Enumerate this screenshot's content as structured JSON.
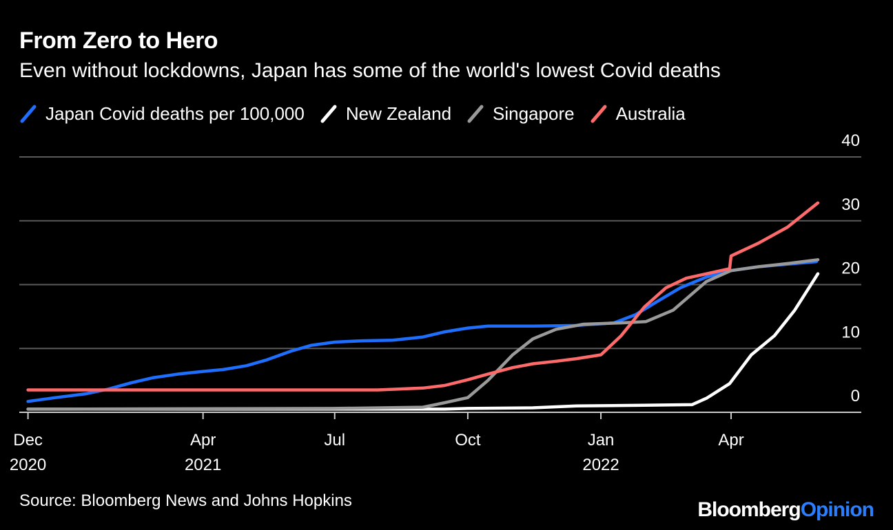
{
  "header": {
    "title": "From Zero to Hero",
    "subtitle": "Even without lockdowns, Japan has some of the world's lowest Covid deaths"
  },
  "footer": {
    "source": "Source: Bloomberg News and Johns Hopkins",
    "brand_part1": "Bloomberg",
    "brand_part2": "Opinion"
  },
  "colors": {
    "background": "#000000",
    "grid": "#5a5a5a",
    "axis": "#cccccc",
    "text": "#ffffff",
    "brand_accent": "#2a7fff"
  },
  "chart_data": {
    "type": "line",
    "title": "From Zero to Hero",
    "subtitle": "Even without lockdowns, Japan has some of the world's lowest Covid deaths",
    "legend_placement": "top-left",
    "grid": true,
    "y_axis_side": "right",
    "ylim": [
      0,
      40
    ],
    "y_ticks": [
      {
        "value": 0,
        "label": "0"
      },
      {
        "value": 10,
        "label": "10"
      },
      {
        "value": 20,
        "label": "20"
      },
      {
        "value": 30,
        "label": "30"
      },
      {
        "value": 40,
        "label": "40"
      }
    ],
    "xlim": [
      "2020-11-25",
      "2022-06-30"
    ],
    "x_ticks": [
      {
        "date": "2020-12-01",
        "label": "Dec",
        "sublabel": "2020"
      },
      {
        "date": "2021-04-01",
        "label": "Apr",
        "sublabel": "2021"
      },
      {
        "date": "2021-07-01",
        "label": "Jul",
        "sublabel": ""
      },
      {
        "date": "2021-10-01",
        "label": "Oct",
        "sublabel": ""
      },
      {
        "date": "2022-01-01",
        "label": "Jan",
        "sublabel": "2022"
      },
      {
        "date": "2022-04-01",
        "label": "Apr",
        "sublabel": ""
      }
    ],
    "series": [
      {
        "name": "Japan Covid deaths per 100,000",
        "color": "#1f6fff",
        "points": [
          [
            "2020-12-01",
            1.7
          ],
          [
            "2020-12-20",
            2.3
          ],
          [
            "2021-01-10",
            2.9
          ],
          [
            "2021-01-25",
            3.6
          ],
          [
            "2021-02-10",
            4.6
          ],
          [
            "2021-02-25",
            5.4
          ],
          [
            "2021-03-15",
            6.0
          ],
          [
            "2021-04-01",
            6.4
          ],
          [
            "2021-04-15",
            6.7
          ],
          [
            "2021-05-01",
            7.3
          ],
          [
            "2021-05-15",
            8.2
          ],
          [
            "2021-06-01",
            9.6
          ],
          [
            "2021-06-15",
            10.5
          ],
          [
            "2021-07-01",
            11.0
          ],
          [
            "2021-07-20",
            11.2
          ],
          [
            "2021-08-10",
            11.3
          ],
          [
            "2021-08-31",
            11.8
          ],
          [
            "2021-09-15",
            12.6
          ],
          [
            "2021-10-01",
            13.2
          ],
          [
            "2021-10-15",
            13.5
          ],
          [
            "2021-11-15",
            13.5
          ],
          [
            "2021-12-15",
            13.6
          ],
          [
            "2022-01-10",
            14.0
          ],
          [
            "2022-01-25",
            15.3
          ],
          [
            "2022-02-10",
            17.5
          ],
          [
            "2022-02-25",
            19.5
          ],
          [
            "2022-03-15",
            21.2
          ],
          [
            "2022-04-01",
            22.2
          ],
          [
            "2022-04-20",
            22.8
          ],
          [
            "2022-05-10",
            23.2
          ],
          [
            "2022-05-30",
            23.6
          ]
        ]
      },
      {
        "name": "New Zealand",
        "color": "#ffffff",
        "points": [
          [
            "2020-12-01",
            0.5
          ],
          [
            "2021-06-30",
            0.5
          ],
          [
            "2021-09-15",
            0.5
          ],
          [
            "2021-10-01",
            0.6
          ],
          [
            "2021-11-15",
            0.7
          ],
          [
            "2021-12-15",
            1.0
          ],
          [
            "2022-01-31",
            1.1
          ],
          [
            "2022-03-05",
            1.2
          ],
          [
            "2022-03-15",
            2.2
          ],
          [
            "2022-03-31",
            4.5
          ],
          [
            "2022-04-15",
            9.0
          ],
          [
            "2022-05-01",
            12.0
          ],
          [
            "2022-05-15",
            16.0
          ],
          [
            "2022-05-31",
            21.7
          ]
        ]
      },
      {
        "name": "Singapore",
        "color": "#9a9a9a",
        "points": [
          [
            "2020-12-01",
            0.5
          ],
          [
            "2021-06-30",
            0.6
          ],
          [
            "2021-08-31",
            0.8
          ],
          [
            "2021-09-15",
            1.5
          ],
          [
            "2021-10-01",
            2.3
          ],
          [
            "2021-10-15",
            5.0
          ],
          [
            "2021-11-01",
            9.0
          ],
          [
            "2021-11-15",
            11.5
          ],
          [
            "2021-12-01",
            13.0
          ],
          [
            "2021-12-20",
            13.8
          ],
          [
            "2022-01-15",
            14.0
          ],
          [
            "2022-02-01",
            14.2
          ],
          [
            "2022-02-20",
            16.0
          ],
          [
            "2022-03-15",
            20.5
          ],
          [
            "2022-04-01",
            22.2
          ],
          [
            "2022-04-20",
            22.8
          ],
          [
            "2022-05-10",
            23.3
          ],
          [
            "2022-05-31",
            23.9
          ]
        ]
      },
      {
        "name": "Australia",
        "color": "#ff6b6b",
        "points": [
          [
            "2020-12-01",
            3.5
          ],
          [
            "2021-07-31",
            3.5
          ],
          [
            "2021-08-31",
            3.8
          ],
          [
            "2021-09-15",
            4.2
          ],
          [
            "2021-10-01",
            5.1
          ],
          [
            "2021-10-15",
            6.0
          ],
          [
            "2021-11-01",
            7.0
          ],
          [
            "2021-11-15",
            7.6
          ],
          [
            "2021-12-01",
            8.0
          ],
          [
            "2021-12-15",
            8.4
          ],
          [
            "2022-01-01",
            9.0
          ],
          [
            "2022-01-15",
            12.0
          ],
          [
            "2022-01-31",
            16.5
          ],
          [
            "2022-02-15",
            19.5
          ],
          [
            "2022-03-01",
            21.0
          ],
          [
            "2022-03-31",
            22.5
          ],
          [
            "2022-04-01",
            24.5
          ],
          [
            "2022-04-20",
            26.5
          ],
          [
            "2022-05-10",
            29.0
          ],
          [
            "2022-05-31",
            32.8
          ]
        ]
      }
    ]
  }
}
